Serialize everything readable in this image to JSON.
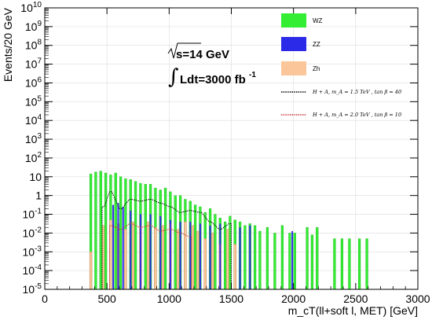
{
  "chart_data": {
    "type": "bar",
    "title": "",
    "xlabel": "m_cT(ll+soft l, MET) [GeV]",
    "ylabel": "Events/20 GeV",
    "xlim": [
      0,
      3000
    ],
    "ylim_log10": [
      -5,
      10
    ],
    "yscale": "log",
    "grid": true,
    "legend_position": "top-right",
    "bin_width": 20,
    "x_ticks": [
      "0",
      "500",
      "1000",
      "1500",
      "2000",
      "2500",
      "3000"
    ],
    "y_ticks": [
      "10^-5",
      "10^-4",
      "10^-3",
      "10^-2",
      "10^-1",
      "1",
      "10",
      "10^2",
      "10^3",
      "10^4",
      "10^5",
      "10^6",
      "10^7",
      "10^8",
      "10^9",
      "10^10"
    ],
    "annotation_energy": "s=14 GeV",
    "annotation_lumi": "Ldt=3000 fb",
    "annotation_lumi_exp": "-1",
    "legend": [
      {
        "label": "WZ",
        "color": "#33ee33",
        "style": "fill"
      },
      {
        "label": "ZZ",
        "color": "#2a2ae8",
        "style": "fill"
      },
      {
        "label": "Zh",
        "color": "#fbc79a",
        "style": "fill"
      },
      {
        "label": "H + A,  m_A = 1.5  TeV ,  tan β = 40",
        "color": "#000000",
        "style": "dotted"
      },
      {
        "label": "H + A,  m_A = 2.0  TeV ,  tan β = 10",
        "color": "#cc3333",
        "style": "dotted"
      }
    ],
    "stack_total_log10": [
      {
        "x": 370,
        "y": 1.15
      },
      {
        "x": 410,
        "y": 1.25
      },
      {
        "x": 450,
        "y": 1.3
      },
      {
        "x": 490,
        "y": 1.2
      },
      {
        "x": 530,
        "y": 1.1
      },
      {
        "x": 570,
        "y": 1.2
      },
      {
        "x": 610,
        "y": 1.0
      },
      {
        "x": 650,
        "y": 0.9
      },
      {
        "x": 690,
        "y": 0.85
      },
      {
        "x": 730,
        "y": 0.75
      },
      {
        "x": 770,
        "y": 0.65
      },
      {
        "x": 810,
        "y": 0.6
      },
      {
        "x": 850,
        "y": 0.6
      },
      {
        "x": 890,
        "y": 0.4
      },
      {
        "x": 930,
        "y": 0.3
      },
      {
        "x": 970,
        "y": 0.4
      },
      {
        "x": 1010,
        "y": 0.2
      },
      {
        "x": 1050,
        "y": 0.0
      },
      {
        "x": 1090,
        "y": 0.0
      },
      {
        "x": 1130,
        "y": -0.2
      },
      {
        "x": 1170,
        "y": -0.3
      },
      {
        "x": 1210,
        "y": -0.5
      },
      {
        "x": 1250,
        "y": -0.6
      },
      {
        "x": 1290,
        "y": -0.9
      },
      {
        "x": 1330,
        "y": -0.7
      },
      {
        "x": 1370,
        "y": -1.0
      },
      {
        "x": 1410,
        "y": -1.2
      },
      {
        "x": 1450,
        "y": -1.4
      },
      {
        "x": 1490,
        "y": -1.1
      },
      {
        "x": 1530,
        "y": -1.3
      },
      {
        "x": 1570,
        "y": -1.4
      },
      {
        "x": 1610,
        "y": -1.6
      },
      {
        "x": 1650,
        "y": -1.5
      },
      {
        "x": 1690,
        "y": -1.6
      },
      {
        "x": 1730,
        "y": -1.9
      },
      {
        "x": 1790,
        "y": -1.7
      },
      {
        "x": 1850,
        "y": -2.0
      },
      {
        "x": 1910,
        "y": -1.6
      },
      {
        "x": 1970,
        "y": -2.0
      },
      {
        "x": 2010,
        "y": -2.0
      },
      {
        "x": 2110,
        "y": -1.7
      },
      {
        "x": 2150,
        "y": -2.1
      },
      {
        "x": 2190,
        "y": -1.7
      },
      {
        "x": 2330,
        "y": -2.3
      },
      {
        "x": 2390,
        "y": -2.3
      },
      {
        "x": 2450,
        "y": -2.3
      },
      {
        "x": 2530,
        "y": -2.3
      },
      {
        "x": 2590,
        "y": -2.3
      }
    ],
    "zh_log10": [
      {
        "x": 370,
        "y": -3.0
      },
      {
        "x": 470,
        "y": -1.6
      },
      {
        "x": 530,
        "y": -1.3
      },
      {
        "x": 590,
        "y": -1.5
      },
      {
        "x": 650,
        "y": -1.8
      },
      {
        "x": 710,
        "y": -1.4
      },
      {
        "x": 770,
        "y": -1.6
      },
      {
        "x": 830,
        "y": -1.4
      },
      {
        "x": 890,
        "y": -1.7
      },
      {
        "x": 950,
        "y": -1.6
      },
      {
        "x": 1010,
        "y": -1.5
      },
      {
        "x": 1070,
        "y": -1.8
      },
      {
        "x": 1130,
        "y": -1.4
      },
      {
        "x": 1190,
        "y": -1.6
      },
      {
        "x": 1230,
        "y": -1.9
      },
      {
        "x": 1290,
        "y": -2.3
      },
      {
        "x": 1350,
        "y": -2.0
      },
      {
        "x": 1410,
        "y": -2.6
      },
      {
        "x": 1470,
        "y": -1.8
      },
      {
        "x": 1530,
        "y": -2.6
      }
    ],
    "zz_log10": [
      {
        "x": 550,
        "y": -0.5
      },
      {
        "x": 590,
        "y": -0.4
      },
      {
        "x": 630,
        "y": -0.6
      },
      {
        "x": 690,
        "y": -0.8
      },
      {
        "x": 770,
        "y": -1.0
      },
      {
        "x": 850,
        "y": -1.0
      },
      {
        "x": 930,
        "y": -1.1
      },
      {
        "x": 1010,
        "y": -1.3
      },
      {
        "x": 1090,
        "y": -1.4
      },
      {
        "x": 1170,
        "y": -1.4
      },
      {
        "x": 1250,
        "y": -1.5
      },
      {
        "x": 1330,
        "y": -1.6
      },
      {
        "x": 1410,
        "y": -1.5
      },
      {
        "x": 1570,
        "y": -1.7
      },
      {
        "x": 1650,
        "y": -1.6
      },
      {
        "x": 1990,
        "y": -1.9
      }
    ],
    "signal_mA_1p5_log10": [
      {
        "x": 470,
        "y": -0.6
      },
      {
        "x": 530,
        "y": 0.2
      },
      {
        "x": 610,
        "y": -0.7
      },
      {
        "x": 690,
        "y": -0.2
      },
      {
        "x": 770,
        "y": -0.3
      },
      {
        "x": 850,
        "y": -0.2
      },
      {
        "x": 930,
        "y": -0.4
      },
      {
        "x": 1010,
        "y": -0.6
      },
      {
        "x": 1090,
        "y": -0.9
      },
      {
        "x": 1170,
        "y": -0.8
      },
      {
        "x": 1250,
        "y": -0.9
      },
      {
        "x": 1330,
        "y": -1.4
      },
      {
        "x": 1410,
        "y": -1.8
      },
      {
        "x": 1490,
        "y": -1.5
      }
    ],
    "signal_mA_2p0_log10": [
      {
        "x": 530,
        "y": -1.6
      },
      {
        "x": 610,
        "y": -1.8
      },
      {
        "x": 690,
        "y": -1.5
      },
      {
        "x": 770,
        "y": -1.7
      },
      {
        "x": 850,
        "y": -1.6
      },
      {
        "x": 930,
        "y": -1.9
      },
      {
        "x": 1010,
        "y": -1.8
      },
      {
        "x": 1090,
        "y": -2.0
      },
      {
        "x": 1170,
        "y": -2.2
      }
    ]
  }
}
